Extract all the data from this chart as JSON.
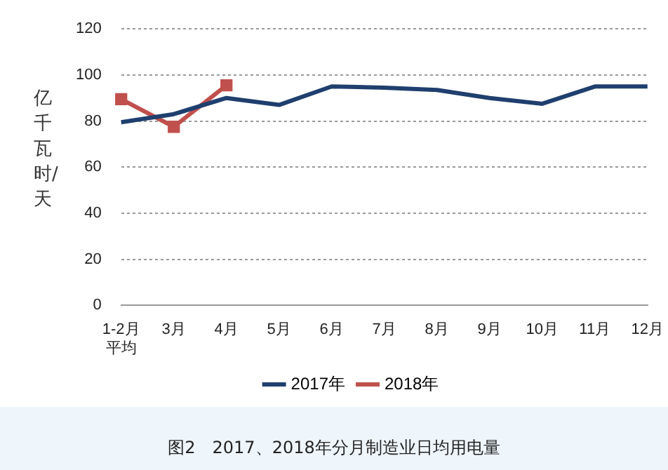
{
  "chart_data": {
    "type": "line",
    "title": "图2　2017、2018年分月制造业日均用电量",
    "ylabel": "亿千瓦时/天",
    "categories": [
      "1-2月平均",
      "3月",
      "4月",
      "5月",
      "6月",
      "7月",
      "8月",
      "9月",
      "10月",
      "11月",
      "12月"
    ],
    "series": [
      {
        "name": "2017年",
        "color": "#1f3f6e",
        "marker": "none",
        "values": [
          79.5,
          83,
          90,
          87,
          95,
          94.5,
          93.5,
          90,
          87.5,
          95,
          95
        ]
      },
      {
        "name": "2018年",
        "color": "#c0504d",
        "marker": "square",
        "values": [
          89.5,
          77.5,
          95.5,
          null,
          null,
          null,
          null,
          null,
          null,
          null,
          null
        ]
      }
    ],
    "ylim": [
      0,
      120
    ],
    "yticks": [
      0,
      20,
      40,
      60,
      80,
      100,
      120
    ],
    "grid": "y",
    "legend": "bottom",
    "line_style": "solid"
  }
}
